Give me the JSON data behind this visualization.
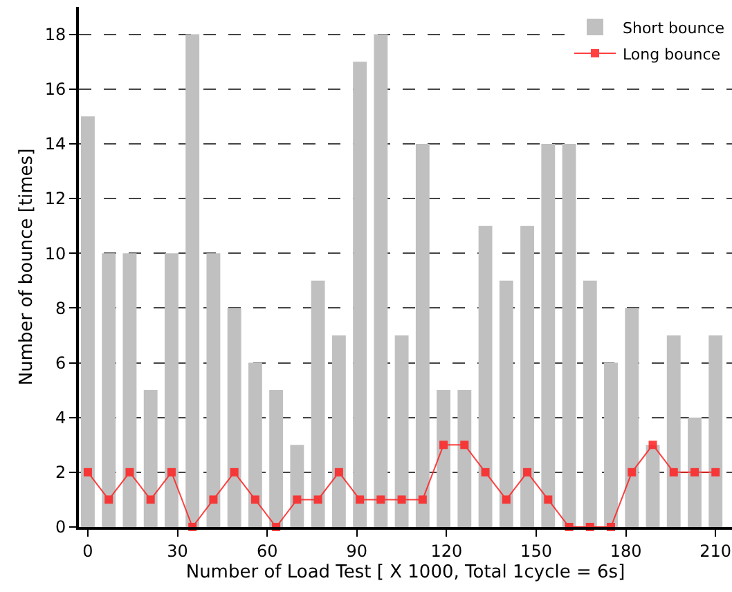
{
  "chart_data": {
    "type": "bar",
    "xlabel": "Number of Load Test [ X 1000, Total 1cycle = 6s]",
    "ylabel": "Number of bounce [times]",
    "x": [
      0,
      7,
      14,
      21,
      28,
      35,
      42,
      49,
      56,
      63,
      70,
      77,
      84,
      91,
      98,
      105,
      112,
      119,
      126,
      133,
      140,
      147,
      154,
      161,
      168,
      175,
      182,
      189,
      196,
      203,
      210
    ],
    "series": [
      {
        "name": "Short bounce",
        "color": "#c0c0c0",
        "values": [
          15,
          10,
          10,
          5,
          10,
          18,
          10,
          8,
          6,
          5,
          3,
          9,
          7,
          17,
          18,
          7,
          14,
          5,
          5,
          11,
          9,
          11,
          14,
          14,
          9,
          6,
          8,
          3,
          7,
          4,
          7
        ]
      },
      {
        "name": "Long bounce",
        "type": "line",
        "color": "#ff2020",
        "marker": "square",
        "values": [
          2,
          1,
          2,
          1,
          2,
          0,
          1,
          2,
          1,
          0,
          1,
          1,
          2,
          1,
          1,
          1,
          1,
          3,
          3,
          2,
          1,
          2,
          1,
          0,
          0,
          0,
          2,
          3,
          2,
          2,
          2
        ]
      }
    ],
    "xlim": [
      -3,
      215.5
    ],
    "xticks": [
      0,
      30,
      60,
      90,
      120,
      150,
      180,
      210
    ],
    "ylim": [
      0,
      19
    ],
    "yticks": [
      0,
      2,
      4,
      6,
      8,
      10,
      12,
      14,
      16,
      18
    ],
    "grid": "y",
    "legend": "top right"
  }
}
